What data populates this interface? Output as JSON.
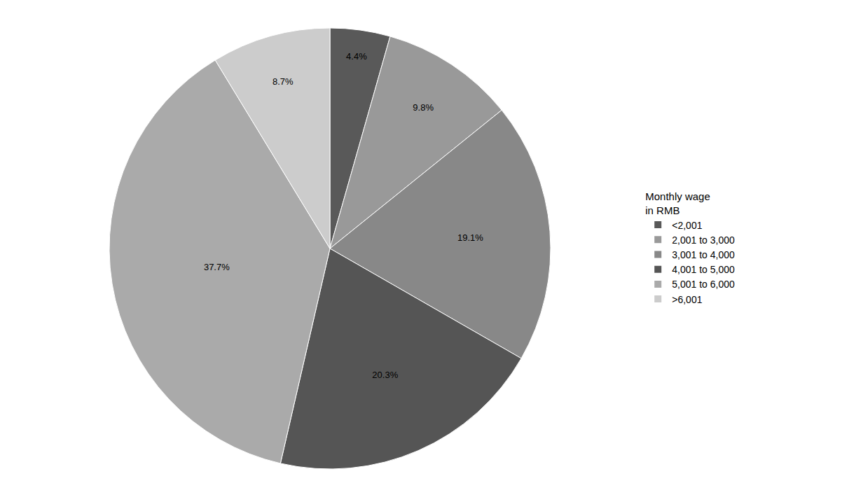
{
  "chart_data": {
    "type": "pie",
    "legend_title": [
      "Monthly wage",
      "in RMB"
    ],
    "categories": [
      "<2,001",
      "2,001 to 3,000",
      "3,001 to 4,000",
      "4,001 to 5,000",
      "5,001 to 6,000",
      ">6,001"
    ],
    "values": [
      4.4,
      9.8,
      19.1,
      20.3,
      37.7,
      8.7
    ],
    "value_labels": [
      "4.4%",
      "9.8%",
      "19.1%",
      "20.3%",
      "37.7%",
      "8.7%"
    ],
    "colors": [
      "#595959",
      "#999999",
      "#888888",
      "#555555",
      "#aaaaaa",
      "#cccccc"
    ],
    "data_labels": true,
    "legend": "right"
  }
}
